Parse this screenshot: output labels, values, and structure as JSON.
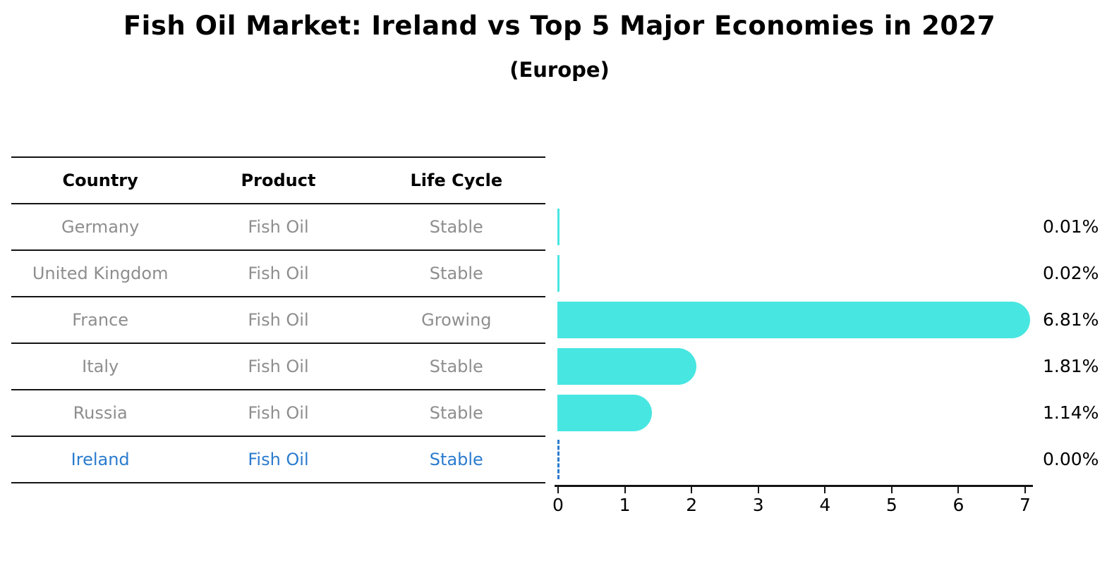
{
  "header": {
    "title": "Fish Oil Market: Ireland vs Top 5 Major Economies in 2027",
    "subtitle": "(Europe)"
  },
  "table": {
    "headers": [
      "Country",
      "Product",
      "Life Cycle"
    ],
    "rows": [
      {
        "country": "Germany",
        "product": "Fish Oil",
        "life_cycle": "Stable",
        "highlight": false
      },
      {
        "country": "United Kingdom",
        "product": "Fish Oil",
        "life_cycle": "Stable",
        "highlight": false
      },
      {
        "country": "France",
        "product": "Fish Oil",
        "life_cycle": "Growing",
        "highlight": false
      },
      {
        "country": "Italy",
        "product": "Fish Oil",
        "life_cycle": "Stable",
        "highlight": false
      },
      {
        "country": "Russia",
        "product": "Fish Oil",
        "life_cycle": "Stable",
        "highlight": false
      },
      {
        "country": "Ireland",
        "product": "Fish Oil",
        "life_cycle": "Stable",
        "highlight": true
      }
    ]
  },
  "chart_data": {
    "type": "bar",
    "orientation": "horizontal",
    "title": "Fish Oil Market: Ireland vs Top 5 Major Economies in 2027",
    "subtitle": "(Europe)",
    "categories": [
      "Germany",
      "United Kingdom",
      "France",
      "Italy",
      "Russia",
      "Ireland"
    ],
    "values": [
      0.01,
      0.02,
      6.81,
      1.81,
      1.14,
      0.0
    ],
    "value_labels": [
      "0.01%",
      "0.02%",
      "6.81%",
      "1.81%",
      "1.14%",
      "0.00%"
    ],
    "xlabel": "",
    "ylabel": "",
    "xlim": [
      0,
      7
    ],
    "xticks": [
      0,
      1,
      2,
      3,
      4,
      5,
      6,
      7
    ],
    "grid": false,
    "legend": null,
    "bar_color": "#48E6E1",
    "highlight": {
      "index": 5,
      "country": "Ireland",
      "style": "dashed-line",
      "color": "#2B7BCE"
    }
  },
  "colors": {
    "bar": "#48E6E1",
    "highlight_blue": "#2B7BCE",
    "muted_text": "#8E8E8E",
    "text": "#000000",
    "line": "#141414",
    "background": "#FFFFFF"
  }
}
